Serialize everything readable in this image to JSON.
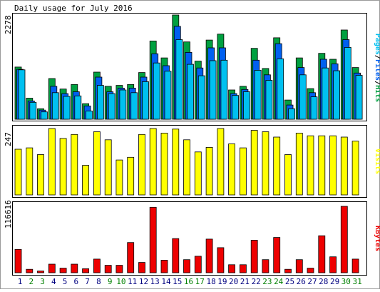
{
  "title": "Daily usage for July 2016",
  "colors": {
    "background": "#ffffff",
    "panel_border": "#000000",
    "hits": "#00a040",
    "files": "#0060f0",
    "pages": "#00c0f0",
    "visits": "#ffff00",
    "kbytes": "#ee0000",
    "weekday_label": "#000080",
    "weekend_label": "#008000"
  },
  "chart_data": [
    {
      "type": "bar",
      "name": "hits-files-pages",
      "y_max_label": "2278",
      "legend": [
        {
          "label": "Pages",
          "color": "#00c0f0"
        },
        {
          "label": "Files",
          "color": "#0060f0"
        },
        {
          "label": "Hits",
          "color": "#00a040"
        }
      ],
      "categories": [
        "1",
        "2",
        "3",
        "4",
        "5",
        "6",
        "7",
        "8",
        "9",
        "10",
        "11",
        "12",
        "13",
        "14",
        "15",
        "16",
        "17",
        "18",
        "19",
        "20",
        "21",
        "22",
        "23",
        "24",
        "25",
        "26",
        "27",
        "28",
        "29",
        "30",
        "31"
      ],
      "weekend_days": [
        "2",
        "3",
        "9",
        "10",
        "16",
        "17",
        "23",
        "24",
        "30",
        "31"
      ],
      "ylim": [
        0,
        2278
      ],
      "series": [
        {
          "name": "Hits",
          "values": [
            1140,
            460,
            230,
            890,
            660,
            760,
            340,
            1030,
            720,
            740,
            760,
            1020,
            1710,
            1340,
            2278,
            1690,
            1270,
            1730,
            1860,
            640,
            720,
            1550,
            1110,
            1780,
            420,
            1340,
            670,
            1440,
            1310,
            1950,
            1130
          ]
        },
        {
          "name": "Files",
          "values": [
            1090,
            400,
            200,
            720,
            560,
            600,
            290,
            920,
            600,
            680,
            680,
            920,
            1430,
            1170,
            2030,
            1460,
            1120,
            1560,
            1560,
            560,
            650,
            1290,
            970,
            1650,
            310,
            1130,
            580,
            1310,
            1210,
            1740,
            1010
          ]
        },
        {
          "name": "Pages",
          "values": [
            1080,
            370,
            160,
            580,
            500,
            510,
            180,
            740,
            560,
            640,
            580,
            820,
            1230,
            1050,
            1740,
            1200,
            950,
            1280,
            1290,
            520,
            600,
            1070,
            850,
            1320,
            230,
            970,
            490,
            1120,
            1060,
            1570,
            960
          ]
        }
      ]
    },
    {
      "type": "bar",
      "name": "visits",
      "y_max_label": "247",
      "legend": [
        {
          "label": "Visits",
          "color": "#ffff00"
        }
      ],
      "ylim": [
        0,
        247
      ],
      "series": [
        {
          "name": "Visits",
          "values": [
            170,
            175,
            150,
            247,
            210,
            225,
            110,
            235,
            205,
            130,
            140,
            225,
            247,
            230,
            245,
            205,
            160,
            177,
            247,
            190,
            175,
            240,
            235,
            215,
            150,
            230,
            220,
            220,
            220,
            215,
            200
          ]
        }
      ]
    },
    {
      "type": "bar",
      "name": "kbytes",
      "y_max_label": "116616",
      "legend": [
        {
          "label": "KBytes",
          "color": "#ee0000"
        }
      ],
      "ylim": [
        0,
        116616
      ],
      "series": [
        {
          "name": "KBytes",
          "values": [
            41000,
            6000,
            3000,
            15000,
            8000,
            15000,
            7000,
            24000,
            13000,
            13000,
            53000,
            18000,
            115000,
            22000,
            60000,
            23000,
            29000,
            59000,
            44000,
            14000,
            14000,
            57000,
            23000,
            62000,
            6000,
            23000,
            8000,
            65000,
            28000,
            116616,
            24000
          ]
        }
      ]
    }
  ]
}
